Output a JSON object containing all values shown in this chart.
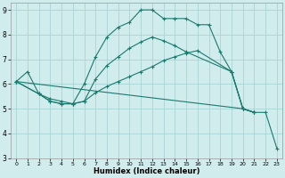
{
  "xlabel": "Humidex (Indice chaleur)",
  "bg_color": "#d0ecec",
  "grid_color": "#a8d4d4",
  "line_color": "#1a7a6e",
  "xlim": [
    -0.5,
    23.5
  ],
  "ylim": [
    3,
    9.3
  ],
  "xticks": [
    0,
    1,
    2,
    3,
    4,
    5,
    6,
    7,
    8,
    9,
    10,
    11,
    12,
    13,
    14,
    15,
    16,
    17,
    18,
    19,
    20,
    21,
    22,
    23
  ],
  "yticks": [
    3,
    4,
    5,
    6,
    7,
    8,
    9
  ],
  "line1_x": [
    0,
    1,
    2,
    3,
    4,
    5,
    6,
    7,
    8,
    9,
    10,
    11,
    12,
    13,
    14,
    15,
    16,
    17,
    18,
    19,
    20,
    21
  ],
  "line1_y": [
    6.1,
    6.5,
    5.6,
    5.4,
    5.3,
    5.2,
    6.0,
    7.1,
    7.9,
    8.3,
    8.5,
    9.0,
    9.0,
    8.65,
    8.65,
    8.65,
    8.4,
    8.4,
    7.3,
    6.5,
    5.0,
    4.85
  ],
  "line2_x": [
    0,
    2,
    3,
    4,
    5,
    6,
    7,
    8,
    9,
    10,
    11,
    12,
    13,
    14,
    15,
    16,
    19,
    20,
    21
  ],
  "line2_y": [
    6.1,
    5.6,
    5.3,
    5.2,
    5.2,
    5.3,
    5.65,
    5.9,
    6.1,
    6.3,
    6.5,
    6.7,
    6.95,
    7.1,
    7.25,
    7.35,
    6.5,
    5.0,
    4.85
  ],
  "line3_x": [
    0,
    2,
    3,
    4,
    5,
    6,
    7,
    8,
    9,
    10,
    11,
    12,
    13,
    14,
    15,
    19,
    20,
    21
  ],
  "line3_y": [
    6.1,
    5.6,
    5.3,
    5.2,
    5.2,
    5.3,
    6.2,
    6.75,
    7.1,
    7.45,
    7.7,
    7.9,
    7.75,
    7.55,
    7.3,
    6.5,
    5.0,
    4.85
  ],
  "line4_x": [
    0,
    20,
    21,
    22,
    23
  ],
  "line4_y": [
    6.1,
    5.0,
    4.85,
    4.85,
    3.4
  ]
}
